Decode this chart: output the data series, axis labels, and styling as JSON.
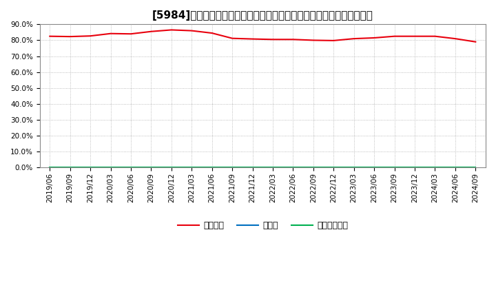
{
  "title": "[5984]　自己資本、のれん、繰延税金資産の総資産に対する比率の推移",
  "x_labels": [
    "2019/06",
    "2019/09",
    "2019/12",
    "2020/03",
    "2020/06",
    "2020/09",
    "2020/12",
    "2021/03",
    "2021/06",
    "2021/09",
    "2021/12",
    "2022/03",
    "2022/06",
    "2022/09",
    "2022/12",
    "2023/03",
    "2023/06",
    "2023/09",
    "2023/12",
    "2024/03",
    "2024/06",
    "2024/09"
  ],
  "jikoshihon": [
    82.5,
    82.3,
    82.7,
    84.2,
    84.0,
    85.5,
    86.5,
    86.0,
    84.5,
    81.2,
    80.8,
    80.5,
    80.5,
    80.0,
    79.8,
    81.0,
    81.5,
    82.5,
    82.5,
    82.5,
    81.0,
    79.0
  ],
  "noren": [
    0.0,
    0.0,
    0.0,
    0.0,
    0.0,
    0.0,
    0.0,
    0.0,
    0.0,
    0.0,
    0.0,
    0.0,
    0.0,
    0.0,
    0.0,
    0.0,
    0.0,
    0.0,
    0.0,
    0.0,
    0.0,
    0.0
  ],
  "kurinobezeikin": [
    0.0,
    0.0,
    0.0,
    0.0,
    0.0,
    0.0,
    0.0,
    0.0,
    0.0,
    0.0,
    0.0,
    0.0,
    0.0,
    0.0,
    0.0,
    0.0,
    0.0,
    0.0,
    0.0,
    0.0,
    0.0,
    0.0
  ],
  "jikoshihon_color": "#e8000d",
  "noren_color": "#0070c0",
  "kurinobezeikin_color": "#00b050",
  "legend_label_jikoshihon": "自己資本",
  "legend_label_noren": "のれん",
  "legend_label_kurinobe": "繰延税金資産",
  "ylim": [
    0,
    90
  ],
  "yticks": [
    0,
    10,
    20,
    30,
    40,
    50,
    60,
    70,
    80,
    90
  ],
  "background_color": "#ffffff",
  "plot_bg_color": "#ffffff",
  "grid_color": "#aaaaaa",
  "title_fontsize": 11,
  "tick_fontsize": 7.5
}
